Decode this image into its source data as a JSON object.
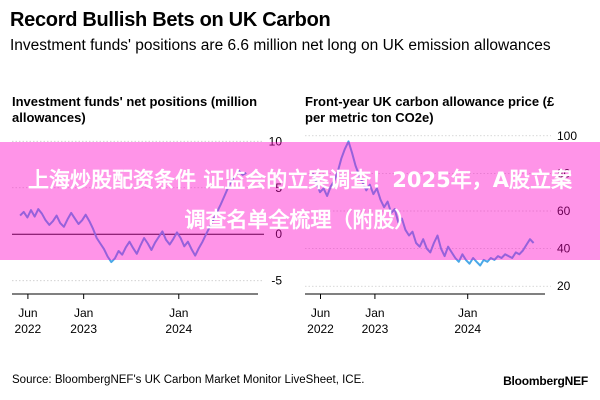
{
  "header": {
    "title": "Record Bullish Bets on UK Carbon",
    "subtitle": "Investment funds' positions are 6.6 million net long on UK emission allowances"
  },
  "footer": {
    "source": "Source: BloombergNEF's UK Carbon Market Monitor LiveSheet, ICE.",
    "brand": "BloombergNEF"
  },
  "overlay": {
    "text": "上海炒股配资条件 证监会的立案调查！2025年，A股立案调查名单全梳理（附股）"
  },
  "colors": {
    "series": "#4aa8e8",
    "gridline": "#cccccc",
    "zero_line": "#000000",
    "banner": "#ff00c8"
  },
  "chart_data": [
    {
      "type": "line",
      "title": "Investment funds' net positions (million allowances)",
      "x_ticks": [
        {
          "x": "2022-06-01",
          "label": [
            "Jun",
            "2022"
          ]
        },
        {
          "x": "2023-01-01",
          "label": [
            "Jan",
            "2023"
          ]
        },
        {
          "x": "2024-01-01",
          "label": [
            "Jan",
            "2024"
          ]
        }
      ],
      "xlim": [
        "2022-04-01",
        "2024-10-31"
      ],
      "y_ticks": [
        10,
        5,
        0,
        -5
      ],
      "ylim": [
        -6,
        11
      ],
      "grid": true,
      "zero_line": true,
      "series": [
        {
          "x": [
            "2022-05-02",
            "2022-05-16",
            "2022-05-30",
            "2022-06-13",
            "2022-06-27",
            "2022-07-11",
            "2022-07-25",
            "2022-08-08",
            "2022-08-22",
            "2022-09-05",
            "2022-09-19",
            "2022-10-03",
            "2022-10-17",
            "2022-10-31",
            "2022-11-14",
            "2022-11-28",
            "2022-12-12",
            "2022-12-26",
            "2023-01-09",
            "2023-01-23",
            "2023-02-06",
            "2023-02-20",
            "2023-03-06",
            "2023-03-20",
            "2023-04-03",
            "2023-04-17",
            "2023-05-01",
            "2023-05-15",
            "2023-05-29",
            "2023-06-12",
            "2023-06-26",
            "2023-07-10",
            "2023-07-24",
            "2023-08-07",
            "2023-08-21",
            "2023-09-04",
            "2023-09-18",
            "2023-10-02",
            "2023-10-16",
            "2023-10-30",
            "2023-11-13",
            "2023-11-27",
            "2023-12-11",
            "2023-12-25",
            "2024-01-08",
            "2024-01-22",
            "2024-02-05",
            "2024-02-19",
            "2024-03-04",
            "2024-03-18",
            "2024-04-01",
            "2024-04-15",
            "2024-04-29",
            "2024-05-13",
            "2024-05-27",
            "2024-06-10",
            "2024-06-24",
            "2024-07-08",
            "2024-07-22",
            "2024-08-05",
            "2024-08-19",
            "2024-09-02",
            "2024-09-16"
          ],
          "values": [
            2.0,
            2.4,
            1.8,
            2.6,
            1.9,
            2.7,
            2.2,
            1.5,
            1.0,
            1.4,
            2.0,
            1.2,
            0.8,
            1.6,
            2.3,
            1.7,
            1.1,
            1.5,
            2.1,
            1.4,
            0.6,
            -0.4,
            -1.0,
            -1.6,
            -2.4,
            -3.0,
            -2.6,
            -1.8,
            -2.2,
            -1.4,
            -0.8,
            -1.5,
            -2.1,
            -1.2,
            -0.4,
            -1.0,
            -1.7,
            -0.9,
            -0.3,
            0.3,
            -0.6,
            -1.1,
            -0.5,
            0.2,
            -0.4,
            -1.3,
            -0.8,
            -1.6,
            -2.3,
            -1.5,
            -0.8,
            0.0,
            0.8,
            1.6,
            2.4,
            3.2,
            4.1,
            5.0,
            5.8,
            6.3,
            6.8,
            6.4,
            6.6
          ]
        }
      ]
    },
    {
      "type": "line",
      "title": "Front-year UK carbon allowance price (£ per metric ton CO2e)",
      "x_ticks": [
        {
          "x": "2022-06-01",
          "label": [
            "Jun",
            "2022"
          ]
        },
        {
          "x": "2023-01-01",
          "label": [
            "Jan",
            "2023"
          ]
        },
        {
          "x": "2024-01-01",
          "label": [
            "Jan",
            "2024"
          ]
        }
      ],
      "xlim": [
        "2022-04-01",
        "2024-10-31"
      ],
      "y_ticks": [
        100,
        80,
        60,
        40,
        20
      ],
      "ylim": [
        18,
        102
      ],
      "grid": true,
      "series": [
        {
          "x": [
            "2022-05-02",
            "2022-05-16",
            "2022-05-30",
            "2022-06-13",
            "2022-06-27",
            "2022-07-11",
            "2022-07-25",
            "2022-08-08",
            "2022-08-22",
            "2022-09-05",
            "2022-09-19",
            "2022-10-03",
            "2022-10-17",
            "2022-10-31",
            "2022-11-14",
            "2022-11-28",
            "2022-12-12",
            "2022-12-26",
            "2023-01-09",
            "2023-01-23",
            "2023-02-06",
            "2023-02-20",
            "2023-03-06",
            "2023-03-20",
            "2023-04-03",
            "2023-04-17",
            "2023-05-01",
            "2023-05-15",
            "2023-05-29",
            "2023-06-12",
            "2023-06-26",
            "2023-07-10",
            "2023-07-24",
            "2023-08-07",
            "2023-08-21",
            "2023-09-04",
            "2023-09-18",
            "2023-10-02",
            "2023-10-16",
            "2023-10-30",
            "2023-11-13",
            "2023-11-27",
            "2023-12-11",
            "2023-12-25",
            "2024-01-08",
            "2024-01-22",
            "2024-02-05",
            "2024-02-19",
            "2024-03-04",
            "2024-03-18",
            "2024-04-01",
            "2024-04-15",
            "2024-04-29",
            "2024-05-13",
            "2024-05-27",
            "2024-06-10",
            "2024-06-24",
            "2024-07-08",
            "2024-07-22",
            "2024-08-05",
            "2024-08-19",
            "2024-09-02",
            "2024-09-16"
          ],
          "values": [
            80,
            75,
            70,
            72,
            68,
            73,
            76,
            81,
            88,
            93,
            97,
            91,
            84,
            79,
            75,
            71,
            74,
            69,
            72,
            66,
            62,
            65,
            59,
            61,
            54,
            56,
            50,
            47,
            49,
            43,
            41,
            45,
            40,
            38,
            43,
            47,
            40,
            36,
            41,
            38,
            35,
            33,
            37,
            34,
            32,
            35,
            33,
            31,
            34,
            33,
            35,
            34,
            36,
            35,
            37,
            36,
            35,
            38,
            37,
            39,
            42,
            45,
            43
          ]
        }
      ]
    }
  ]
}
